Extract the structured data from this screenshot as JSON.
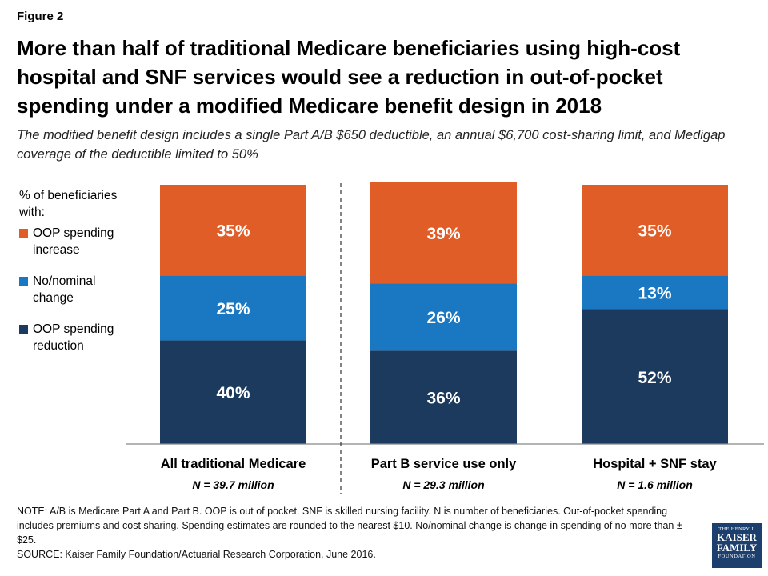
{
  "figure_label": "Figure 2",
  "title": "More than half of traditional Medicare beneficiaries using high-cost hospital and SNF services would see a reduction in out-of-pocket spending under a modified Medicare benefit design in 2018",
  "subtitle": "The modified benefit design includes a single Part A/B $650 deductible, an annual $6,700 cost-sharing limit, and Medigap coverage of the deductible limited to 50%",
  "legend": {
    "title": "% of beneficiaries with:",
    "items": [
      {
        "label": "OOP spending increase",
        "color": "#e05d27"
      },
      {
        "label": "No/nominal change",
        "color": "#1a78c2"
      },
      {
        "label": "OOP spending reduction",
        "color": "#1c3a5e"
      }
    ]
  },
  "chart_data": {
    "type": "bar",
    "stacked": true,
    "unit": "%",
    "categories": [
      "All traditional Medicare",
      "Part B service use only",
      "Hospital + SNF stay"
    ],
    "category_sublabels": [
      "N = 39.7 million",
      "N = 29.3 million",
      "N = 1.6 million"
    ],
    "series": [
      {
        "name": "OOP spending reduction",
        "values": [
          40,
          36,
          52
        ],
        "color": "#1c3a5e",
        "labels": [
          "40%",
          "36%",
          "52%"
        ]
      },
      {
        "name": "No/nominal change",
        "values": [
          25,
          26,
          13
        ],
        "color": "#1a78c2",
        "labels": [
          "25%",
          "26%",
          "13%"
        ]
      },
      {
        "name": "OOP spending increase",
        "values": [
          35,
          39,
          35
        ],
        "color": "#e05d27",
        "labels": [
          "35%",
          "39%",
          "35%"
        ]
      }
    ],
    "ylim": [
      0,
      100
    ],
    "grid": false,
    "legend_position": "left"
  },
  "note": "NOTE: A/B is Medicare Part A and Part B. OOP is out of pocket. SNF is skilled nursing facility. N is number of beneficiaries. Out-of-pocket spending includes premiums and cost sharing. Spending estimates are rounded to the nearest $10. No/nominal change is change in spending of no more than ±$25.",
  "source": "SOURCE: Kaiser Family Foundation/Actuarial Research Corporation, June 2016.",
  "logo": {
    "line1": "THE HENRY J.",
    "line2": "KAISER",
    "line3": "FAMILY",
    "line4": "FOUNDATION"
  }
}
